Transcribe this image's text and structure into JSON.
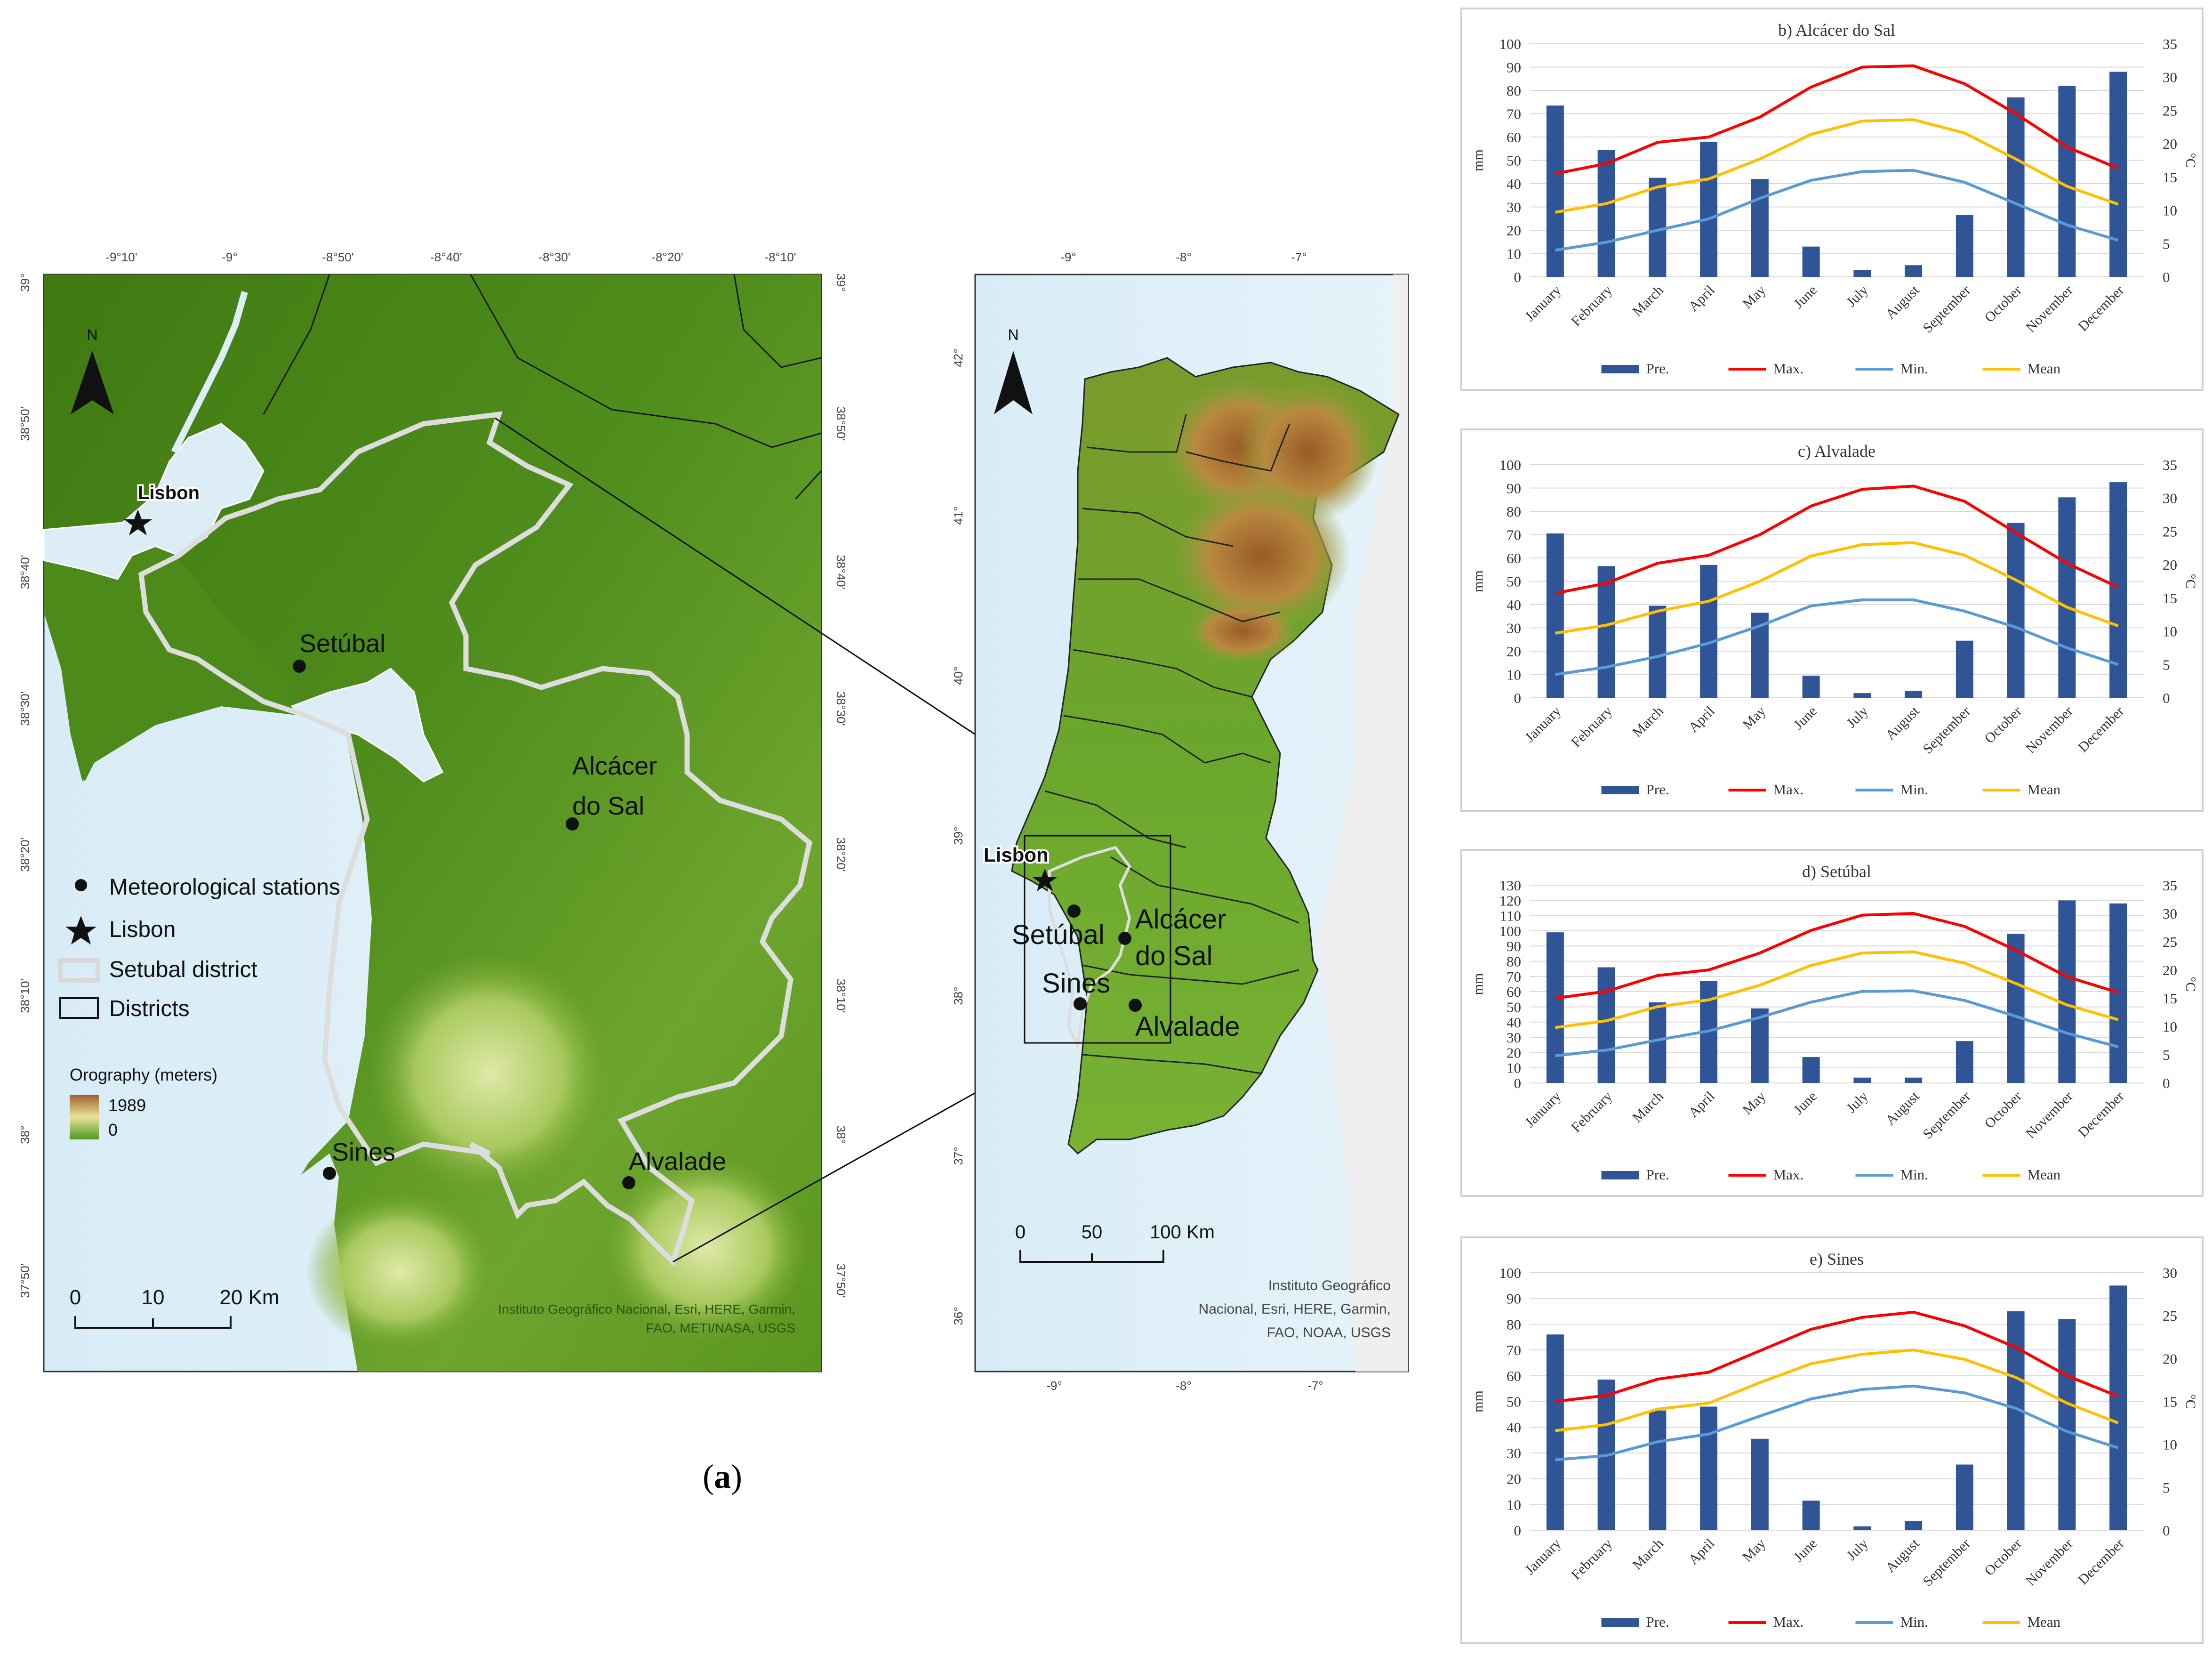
{
  "figure_label": {
    "open": "(",
    "letter": "a",
    "close": ")"
  },
  "map_a": {
    "top_ticks": [
      "-9°10'",
      "-9°",
      "-8°50'",
      "-8°40'",
      "-8°30'",
      "-8°20'",
      "-8°10'"
    ],
    "left_ticks": [
      "39°",
      "38°50'",
      "38°40'",
      "38°30'",
      "38°20'",
      "38°10'",
      "38°",
      "37°50'"
    ],
    "right_ticks": [
      "39°",
      "38°50'",
      "38°40'",
      "38°30'",
      "38°20'",
      "38°10'",
      "38°",
      "37°50'"
    ],
    "north": "N",
    "places": {
      "lisbon": "Lisbon",
      "setubal": "Setúbal",
      "alcacer_1": "Alcácer",
      "alcacer_2": "do Sal",
      "sines": "Sines",
      "alvalade": "Alvalade"
    },
    "legend": {
      "stations": "Meteorological stations",
      "lisbon": "Lisbon",
      "setubal_district": "Setubal district",
      "districts": "Districts",
      "orography_title": "Orography (meters)",
      "orography_max": "1989",
      "orography_min": "0"
    },
    "scale": {
      "labels": [
        "0",
        "10",
        "20 Km"
      ]
    },
    "credits": [
      "Instituto Geográfico Nacional, Esri, HERE, Garmin,",
      "FAO, METI/NASA, USGS"
    ]
  },
  "map_b": {
    "top_ticks": [
      "-9°",
      "-8°",
      "-7°"
    ],
    "bottom_ticks": [
      "-9°",
      "-8°",
      "-7°"
    ],
    "left_ticks": [
      "42°",
      "41°",
      "40°",
      "39°",
      "38°",
      "37°",
      "36°"
    ],
    "north": "N",
    "places": {
      "lisbon": "Lisbon",
      "setubal": "Setúbal",
      "alcacer_1": "Alcácer",
      "alcacer_2": "do Sal",
      "sines": "Sines",
      "alvalade": "Alvalade"
    },
    "scale": {
      "labels": [
        "0",
        "50",
        "100 Km"
      ]
    },
    "credits": [
      "Instituto Geográfico",
      "Nacional, Esri, HERE, Garmin,",
      "FAO, NOAA, USGS"
    ]
  },
  "chart_data": [
    {
      "type": "bar+line",
      "title": "b) Alcácer do Sal",
      "ylabel": "mm",
      "y2label": "°C",
      "ylim": [
        0,
        100
      ],
      "yticks": [
        0,
        10,
        20,
        30,
        40,
        50,
        60,
        70,
        80,
        90,
        100
      ],
      "y2lim": [
        0,
        35
      ],
      "y2ticks": [
        0,
        5,
        10,
        15,
        20,
        25,
        30,
        35
      ],
      "categories": [
        "January",
        "February",
        "March",
        "April",
        "May",
        "June",
        "July",
        "August",
        "September",
        "October",
        "November",
        "December"
      ],
      "series": [
        {
          "name": "Pre.",
          "kind": "bar",
          "axis": "left",
          "color": "#2f5597",
          "values": [
            73.5,
            54.5,
            42.5,
            58,
            42,
            13,
            3,
            5,
            26.5,
            77,
            82,
            88
          ]
        },
        {
          "name": "Max.",
          "kind": "line",
          "axis": "right",
          "color": "#ff0000",
          "values": [
            15.5,
            17,
            20.2,
            21,
            24,
            28.5,
            31.5,
            31.7,
            29,
            24.5,
            19.5,
            16.3
          ]
        },
        {
          "name": "Min.",
          "kind": "line",
          "axis": "right",
          "color": "#5b9bd5",
          "values": [
            4,
            5.2,
            7,
            8.7,
            11.8,
            14.5,
            15.8,
            16,
            14.2,
            11,
            7.8,
            5.5
          ]
        },
        {
          "name": "Mean",
          "kind": "line",
          "axis": "right",
          "color": "#ffc000",
          "values": [
            9.7,
            11,
            13.5,
            14.7,
            17.7,
            21.4,
            23.4,
            23.6,
            21.6,
            17.7,
            13.6,
            10.9
          ]
        }
      ],
      "legend": "bottom"
    },
    {
      "type": "bar+line",
      "title": "c) Alvalade",
      "ylabel": "mm",
      "y2label": "°C",
      "ylim": [
        0,
        100
      ],
      "yticks": [
        0,
        10,
        20,
        30,
        40,
        50,
        60,
        70,
        80,
        90,
        100
      ],
      "y2lim": [
        0,
        35
      ],
      "y2ticks": [
        0,
        5,
        10,
        15,
        20,
        25,
        30,
        35
      ],
      "categories": [
        "January",
        "February",
        "March",
        "April",
        "May",
        "June",
        "July",
        "August",
        "September",
        "October",
        "November",
        "December"
      ],
      "series": [
        {
          "name": "Pre.",
          "kind": "bar",
          "axis": "left",
          "color": "#2f5597",
          "values": [
            70.5,
            56.5,
            39.5,
            57,
            36.5,
            9.5,
            2,
            3,
            24.5,
            75,
            86,
            92.5
          ]
        },
        {
          "name": "Max.",
          "kind": "line",
          "axis": "right",
          "color": "#ff0000",
          "values": [
            15.7,
            17.2,
            20.2,
            21.4,
            24.5,
            28.8,
            31.3,
            31.8,
            29.5,
            24.8,
            20.2,
            16.6
          ]
        },
        {
          "name": "Min.",
          "kind": "line",
          "axis": "right",
          "color": "#5b9bd5",
          "values": [
            3.5,
            4.6,
            6.2,
            8.2,
            10.8,
            13.8,
            14.7,
            14.7,
            13,
            10.6,
            7.5,
            5
          ]
        },
        {
          "name": "Mean",
          "kind": "line",
          "axis": "right",
          "color": "#ffc000",
          "values": [
            9.7,
            10.9,
            13,
            14.5,
            17.5,
            21.3,
            23,
            23.3,
            21.4,
            17.7,
            13.6,
            10.8
          ]
        }
      ],
      "legend": "bottom"
    },
    {
      "type": "bar+line",
      "title": "d) Setúbal",
      "ylabel": "mm",
      "y2label": "°C",
      "ylim": [
        0,
        130
      ],
      "yticks": [
        0,
        10,
        20,
        30,
        40,
        50,
        60,
        70,
        80,
        90,
        100,
        110,
        120,
        130
      ],
      "y2lim": [
        0,
        35
      ],
      "y2ticks": [
        0,
        5,
        10,
        15,
        20,
        25,
        30,
        35
      ],
      "categories": [
        "January",
        "February",
        "March",
        "April",
        "May",
        "June",
        "July",
        "August",
        "September",
        "October",
        "November",
        "December"
      ],
      "series": [
        {
          "name": "Pre.",
          "kind": "bar",
          "axis": "left",
          "color": "#2f5597",
          "values": [
            99,
            76,
            53,
            67,
            49,
            17,
            3.5,
            3.5,
            27.5,
            98,
            120,
            118
          ]
        },
        {
          "name": "Max.",
          "kind": "line",
          "axis": "right",
          "color": "#ff0000",
          "values": [
            15,
            16.2,
            19,
            20,
            23,
            27,
            29.7,
            30,
            27.7,
            23.5,
            18.8,
            16
          ]
        },
        {
          "name": "Min.",
          "kind": "line",
          "axis": "right",
          "color": "#5b9bd5",
          "values": [
            4.8,
            5.8,
            7.6,
            9.2,
            11.6,
            14.3,
            16.2,
            16.3,
            14.6,
            11.8,
            8.8,
            6.4
          ]
        },
        {
          "name": "Mean",
          "kind": "line",
          "axis": "right",
          "color": "#ffc000",
          "values": [
            9.8,
            11,
            13.5,
            14.7,
            17.3,
            20.8,
            23,
            23.2,
            21.2,
            17.6,
            13.8,
            11.2
          ]
        }
      ],
      "legend": "bottom"
    },
    {
      "type": "bar+line",
      "title": "e) Sines",
      "ylabel": "mm",
      "y2label": "°C",
      "ylim": [
        0,
        100
      ],
      "yticks": [
        0,
        10,
        20,
        30,
        40,
        50,
        60,
        70,
        80,
        90,
        100
      ],
      "y2lim": [
        0,
        30
      ],
      "y2ticks": [
        0,
        5,
        10,
        15,
        20,
        25,
        30
      ],
      "categories": [
        "January",
        "February",
        "March",
        "April",
        "May",
        "June",
        "July",
        "August",
        "September",
        "October",
        "November",
        "December"
      ],
      "series": [
        {
          "name": "Pre.",
          "kind": "bar",
          "axis": "left",
          "color": "#2f5597",
          "values": [
            76,
            58.5,
            46.5,
            48,
            35.5,
            11.5,
            1.5,
            3.5,
            25.5,
            85,
            82,
            95
          ]
        },
        {
          "name": "Max.",
          "kind": "line",
          "axis": "right",
          "color": "#ff0000",
          "values": [
            15,
            15.7,
            17.6,
            18.4,
            20.9,
            23.4,
            24.8,
            25.4,
            23.8,
            21.3,
            18,
            15.6
          ]
        },
        {
          "name": "Min.",
          "kind": "line",
          "axis": "right",
          "color": "#5b9bd5",
          "values": [
            8.2,
            8.7,
            10.3,
            11.2,
            13.3,
            15.3,
            16.4,
            16.8,
            16,
            14.2,
            11.5,
            9.6
          ]
        },
        {
          "name": "Mean",
          "kind": "line",
          "axis": "right",
          "color": "#ffc000",
          "values": [
            11.6,
            12.3,
            14.1,
            14.8,
            17.2,
            19.4,
            20.5,
            21,
            19.9,
            17.8,
            14.8,
            12.5
          ]
        }
      ],
      "legend": "bottom"
    }
  ]
}
